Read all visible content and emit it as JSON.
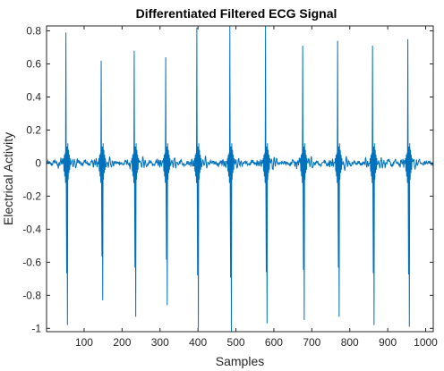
{
  "chart_data": {
    "type": "line",
    "title": "Differentiated Filtered ECG Signal",
    "xlabel": "Samples",
    "ylabel": "Electrical Activity",
    "xlim": [
      1,
      1020
    ],
    "ylim": [
      -1.02,
      0.83
    ],
    "x_ticks": [
      100,
      200,
      300,
      400,
      500,
      600,
      700,
      800,
      900,
      1000
    ],
    "x_tick_labels": [
      "100",
      "200",
      "300",
      "400",
      "500",
      "600",
      "700",
      "800",
      "900",
      "1000"
    ],
    "y_ticks": [
      -1,
      -0.8,
      -0.6,
      -0.4,
      -0.2,
      0,
      0.2,
      0.4,
      0.6,
      0.8
    ],
    "y_tick_labels": [
      "-1",
      "-0.8",
      "-0.6",
      "-0.4",
      "-0.2",
      "0",
      "0.2",
      "0.4",
      "0.6",
      "0.8"
    ],
    "grid": false,
    "line_color": "#0072BD",
    "beats": [
      {
        "x": 52,
        "peak": 0.79,
        "trough": -0.98
      },
      {
        "x": 145,
        "peak": 0.62,
        "trough": -0.83
      },
      {
        "x": 232,
        "peak": 0.68,
        "trough": -0.93
      },
      {
        "x": 315,
        "peak": 0.64,
        "trough": -0.86
      },
      {
        "x": 397,
        "peak": 0.82,
        "trough": -1.0
      },
      {
        "x": 484,
        "peak": 0.83,
        "trough": -1.02
      },
      {
        "x": 578,
        "peak": 0.83,
        "trough": -0.97
      },
      {
        "x": 676,
        "peak": 0.71,
        "trough": -0.95
      },
      {
        "x": 768,
        "peak": 0.74,
        "trough": -0.93
      },
      {
        "x": 860,
        "peak": 0.71,
        "trough": -0.98
      },
      {
        "x": 953,
        "peak": 0.75,
        "trough": -0.99
      }
    ]
  }
}
